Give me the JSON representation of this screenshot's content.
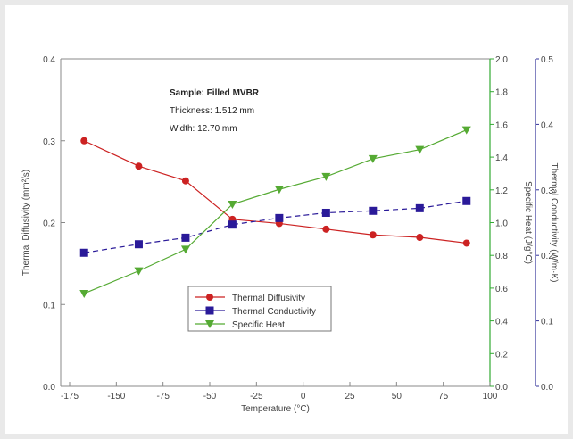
{
  "chart_data": {
    "type": "line",
    "title": "",
    "xlabel": "Temperature (°C)",
    "xlim": [
      -175,
      100
    ],
    "x_ticks": [
      "-175",
      "-150",
      "-75",
      "-50",
      "-25",
      "0",
      "25",
      "50",
      "75",
      "100"
    ],
    "x": [
      -160,
      -125,
      -95,
      -65,
      -35,
      -5,
      25,
      55,
      85
    ],
    "axes": {
      "left": {
        "label": "Thermal Diffusivity (mm²/s)",
        "ylim": [
          0.0,
          0.4
        ],
        "ticks": [
          "0.0",
          "0.1",
          "0.2",
          "0.3",
          "0.4"
        ],
        "color": "#666666"
      },
      "right1": {
        "label": "Specific Heat (J/g°C)",
        "ylim": [
          0.0,
          2.0
        ],
        "ticks": [
          "0.0",
          "0.2",
          "0.4",
          "0.6",
          "0.8",
          "1.0",
          "1.2",
          "1.4",
          "1.6",
          "1.8",
          "2.0"
        ],
        "color": "#33aa33"
      },
      "right2": {
        "label": "Thermal Conductivity (W/m·K)",
        "ylim": [
          0.0,
          0.5
        ],
        "ticks": [
          "0.0",
          "0.1",
          "0.2",
          "0.3",
          "0.4",
          "0.5"
        ],
        "color": "#333399"
      }
    },
    "series": [
      {
        "name": "Thermal Diffusivity",
        "axis": "left",
        "color": "#cc2222",
        "marker": "circle",
        "dash": "",
        "values": [
          0.3,
          0.269,
          0.251,
          0.204,
          0.199,
          0.192,
          0.185,
          0.182,
          0.175
        ]
      },
      {
        "name": "Thermal Conductivity",
        "axis": "right2",
        "color": "#2a1a99",
        "marker": "square",
        "dash": "6,4",
        "values": [
          0.204,
          0.217,
          0.227,
          0.247,
          0.257,
          0.265,
          0.268,
          0.272,
          0.283
        ]
      },
      {
        "name": "Specific Heat",
        "axis": "right1",
        "color": "#55aa33",
        "marker": "triangle-down",
        "dash": "",
        "values": [
          0.567,
          0.705,
          0.837,
          1.112,
          1.203,
          1.281,
          1.39,
          1.446,
          1.566
        ]
      }
    ],
    "annotation": {
      "line1": "Sample: Filled MVBR",
      "line2": "Thickness: 1.512 mm",
      "line3": "Width: 12.70 mm"
    },
    "legend_position": "bottom-center",
    "grid": false
  }
}
